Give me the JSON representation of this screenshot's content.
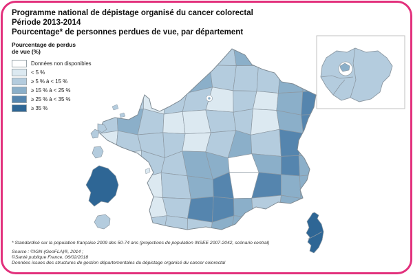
{
  "frame": {
    "border_color": "#E2307C"
  },
  "title": {
    "line1": "Programme national de dépistage organisé du cancer colorectal",
    "line2": "Période 2013-2014",
    "line3": "Pourcentage* de personnes perdues de vue, par département"
  },
  "legend": {
    "title_line1": "Pourcentage de perdus",
    "title_line2": "de vue (%)",
    "items": [
      {
        "label": "Données non disponibles",
        "color": "#FFFFFF"
      },
      {
        "label": "< 5 %",
        "color": "#DCE9F1"
      },
      {
        "label": "≥ 5 % à < 15 %",
        "color": "#B4CCDE"
      },
      {
        "label": "≥ 15 % à < 25 %",
        "color": "#8BAFC9"
      },
      {
        "label": "≥ 25 % à < 35 %",
        "color": "#5585AE"
      },
      {
        "label": "≥ 35 %",
        "color": "#2E6695"
      }
    ]
  },
  "footnote": "* Standardisé sur la population française 2009 des 50-74 ans (projections de population INSEE 2007-2042, scénario central)",
  "source": {
    "line1": "Source : ©IGN-(GeoFLA)®, 2014 ;",
    "line2": "©Santé publique France, 06/02/2018",
    "line3": "Données issues des structures de gestion départementales du dépistage organisé du cancer colorectal"
  },
  "map": {
    "type": "choropleth",
    "palette": [
      "#FFFFFF",
      "#DCE9F1",
      "#B4CCDE",
      "#8BAFC9",
      "#5585AE",
      "#2E6695"
    ],
    "grid": [
      [
        3,
        3,
        3,
        3,
        3,
        3,
        4,
        3,
        3,
        3
      ],
      [
        3,
        3,
        3,
        5,
        4,
        3,
        3,
        3,
        4,
        4
      ],
      [
        4,
        3,
        2,
        3,
        3,
        2,
        3,
        2,
        4,
        5
      ],
      [
        3,
        4,
        3,
        2,
        2,
        3,
        3,
        2,
        4,
        5
      ],
      [
        2,
        3,
        3,
        3,
        2,
        3,
        4,
        3,
        5,
        4
      ],
      [
        2,
        2,
        3,
        3,
        4,
        4,
        1,
        4,
        5,
        4
      ],
      [
        2,
        2,
        2,
        3,
        4,
        5,
        1,
        5,
        4,
        4
      ],
      [
        2,
        3,
        2,
        3,
        5,
        5,
        4,
        3,
        4,
        3
      ],
      [
        3,
        2,
        3,
        3,
        3,
        4,
        4,
        3,
        3,
        3
      ]
    ],
    "overseas": [
      {
        "name": "Guadeloupe",
        "category": 3
      },
      {
        "name": "Martinique",
        "category": 3
      },
      {
        "name": "Guyane",
        "category": 6
      },
      {
        "name": "La Réunion",
        "category": 3
      }
    ],
    "corsica_category": 6,
    "idf_inset": {
      "region_category": 3,
      "inner_ring_category": 1,
      "paris_category": 4
    }
  }
}
